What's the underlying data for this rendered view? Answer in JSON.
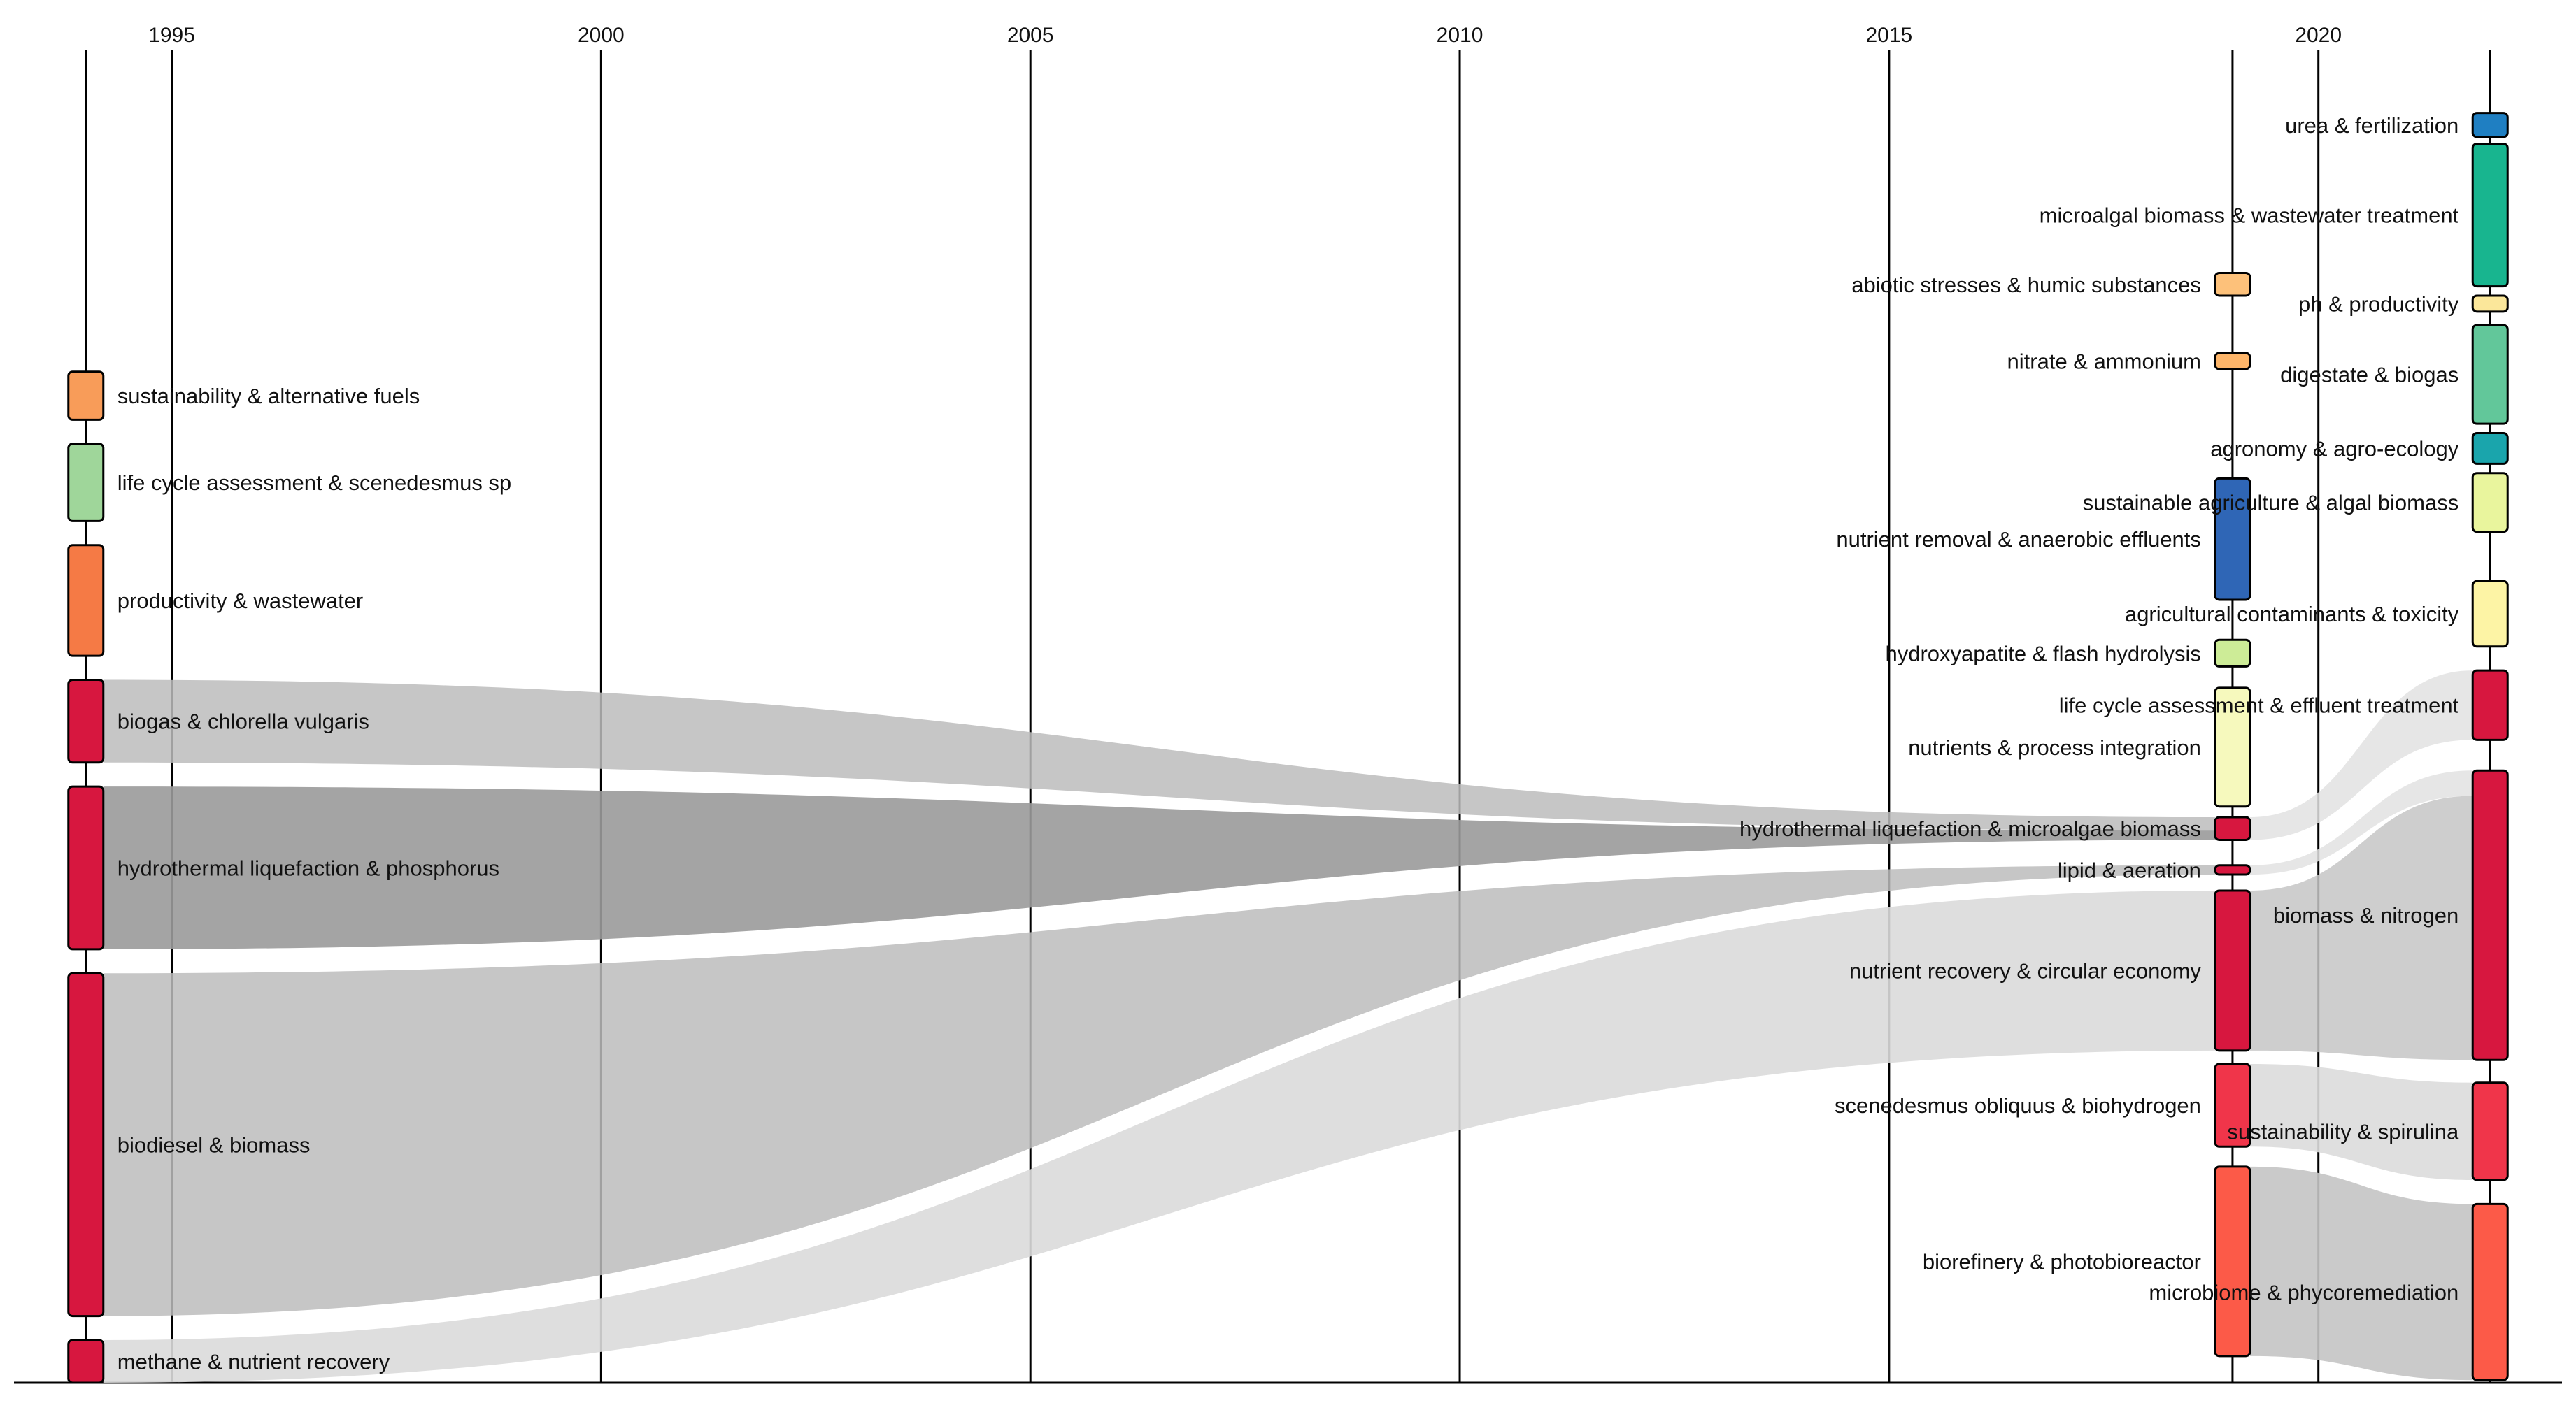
{
  "chart_data": {
    "type": "alluvial",
    "x_axis": {
      "range": [
        1993.0,
        2023.0
      ],
      "ticks": [
        "1995",
        "2000",
        "2005",
        "2010",
        "2015",
        "2020"
      ],
      "tick_values": [
        1995,
        2000,
        2005,
        2010,
        2015,
        2020
      ],
      "vertical_gridlines": true
    },
    "columns": [
      1994,
      2019,
      2022
    ],
    "nodes": [
      {
        "id": "sustainability_alt_fuels",
        "label": "sustainability & alternative fuels",
        "year": 1994,
        "label_side": "right",
        "y0": 0.242,
        "y1": 0.278,
        "color": "#f89c59"
      },
      {
        "id": "lca_scenedesmus",
        "label": "life cycle assessment & scenedesmus sp",
        "year": 1994,
        "label_side": "right",
        "y0": 0.296,
        "y1": 0.354,
        "color": "#9fd69a"
      },
      {
        "id": "productivity_wastewater",
        "label": "productivity & wastewater",
        "year": 1994,
        "label_side": "right",
        "y0": 0.372,
        "y1": 0.455,
        "color": "#f57a45"
      },
      {
        "id": "biogas_chlorella",
        "label": "biogas & chlorella vulgaris",
        "year": 1994,
        "label_side": "right",
        "y0": 0.473,
        "y1": 0.535,
        "color": "#d7173f"
      },
      {
        "id": "htl_phosphorus",
        "label": "hydrothermal liquefaction & phosphorus",
        "year": 1994,
        "label_side": "right",
        "y0": 0.553,
        "y1": 0.675,
        "color": "#d7173f"
      },
      {
        "id": "biodiesel_biomass",
        "label": "biodiesel & biomass",
        "year": 1994,
        "label_side": "right",
        "y0": 0.693,
        "y1": 0.95,
        "color": "#d7173f"
      },
      {
        "id": "methane_nutrient",
        "label": "methane & nutrient recovery",
        "year": 1994,
        "label_side": "right",
        "y0": 0.968,
        "y1": 1.0,
        "color": "#d7173f"
      },
      {
        "id": "abiotic_humic",
        "label": "abiotic stresses & humic substances",
        "year": 2019,
        "label_side": "left",
        "y0": 0.168,
        "y1": 0.185,
        "color": "#fdc17a"
      },
      {
        "id": "nitrate_ammonium",
        "label": "nitrate & ammonium",
        "year": 2019,
        "label_side": "left",
        "y0": 0.228,
        "y1": 0.24,
        "color": "#fdb569"
      },
      {
        "id": "nutrient_removal_anaerobic",
        "label": "nutrient removal & anaerobic effluents",
        "year": 2019,
        "label_side": "left",
        "y0": 0.322,
        "y1": 0.413,
        "color": "#2f66b6"
      },
      {
        "id": "hydroxyapatite_flash",
        "label": "hydroxyapatite & flash hydrolysis",
        "year": 2019,
        "label_side": "left",
        "y0": 0.443,
        "y1": 0.463,
        "color": "#cdec97"
      },
      {
        "id": "nutrients_process",
        "label": "nutrients & process integration",
        "year": 2019,
        "label_side": "left",
        "y0": 0.479,
        "y1": 0.568,
        "color": "#f6f9bd"
      },
      {
        "id": "htl_microalgae",
        "label": "hydrothermal liquefaction & microalgae biomass",
        "year": 2019,
        "label_side": "left",
        "y0": 0.576,
        "y1": 0.593,
        "color": "#d7173f"
      },
      {
        "id": "lipid_aeration",
        "label": "lipid & aeration",
        "year": 2019,
        "label_side": "left",
        "y0": 0.612,
        "y1": 0.619,
        "color": "#d7173f"
      },
      {
        "id": "nutrient_recovery_circular",
        "label": "nutrient recovery & circular economy",
        "year": 2019,
        "label_side": "left",
        "y0": 0.631,
        "y1": 0.751,
        "color": "#d7173f"
      },
      {
        "id": "scenedesmus_biohydrogen",
        "label": "scenedesmus obliquus & biohydrogen",
        "year": 2019,
        "label_side": "left",
        "y0": 0.761,
        "y1": 0.823,
        "color": "#f0354a"
      },
      {
        "id": "biorefinery_pbr",
        "label": "biorefinery & photobioreactor",
        "year": 2019,
        "label_side": "left",
        "y0": 0.838,
        "y1": 0.98,
        "color": "#fc5a48"
      },
      {
        "id": "urea_fertilization",
        "label": "urea & fertilization",
        "year": 2022,
        "label_side": "left",
        "y0": 0.048,
        "y1": 0.066,
        "color": "#1f7fc2"
      },
      {
        "id": "microalgal_wastewater",
        "label": "microalgal biomass & wastewater treatment",
        "year": 2022,
        "label_side": "left",
        "y0": 0.071,
        "y1": 0.178,
        "color": "#18b58f"
      },
      {
        "id": "ph_productivity",
        "label": "ph & productivity",
        "year": 2022,
        "label_side": "left",
        "y0": 0.185,
        "y1": 0.197,
        "color": "#fbe79a"
      },
      {
        "id": "digestate_biogas",
        "label": "digestate & biogas",
        "year": 2022,
        "label_side": "left",
        "y0": 0.207,
        "y1": 0.281,
        "color": "#62c79a"
      },
      {
        "id": "agronomy_agroecology",
        "label": "agronomy & agro-ecology",
        "year": 2022,
        "label_side": "left",
        "y0": 0.288,
        "y1": 0.311,
        "color": "#1aa5ac"
      },
      {
        "id": "sust_ag_algal",
        "label": "sustainable agriculture & algal biomass",
        "year": 2022,
        "label_side": "left",
        "y0": 0.318,
        "y1": 0.362,
        "color": "#e9f59d"
      },
      {
        "id": "ag_contaminants_toxicity",
        "label": "agricultural contaminants & toxicity",
        "year": 2022,
        "label_side": "left",
        "y0": 0.399,
        "y1": 0.448,
        "color": "#fdf4a5"
      },
      {
        "id": "lca_effluent",
        "label": "life cycle assessment & effluent treatment",
        "year": 2022,
        "label_side": "left",
        "y0": 0.466,
        "y1": 0.518,
        "color": "#d7173f"
      },
      {
        "id": "biomass_nitrogen",
        "label": "biomass & nitrogen",
        "year": 2022,
        "label_side": "left",
        "y0": 0.541,
        "y1": 0.758,
        "color": "#d7173f"
      },
      {
        "id": "sustainability_spirulina",
        "label": "sustainability & spirulina",
        "year": 2022,
        "label_side": "left",
        "y0": 0.775,
        "y1": 0.848,
        "color": "#f0354a"
      },
      {
        "id": "microbiome_phycoremediation",
        "label": "microbiome & phycoremediation",
        "year": 2022,
        "label_side": "left",
        "y0": 0.866,
        "y1": 0.998,
        "color": "#fc5a48"
      }
    ],
    "flows": [
      {
        "from": "biogas_chlorella",
        "to": "htl_microalgae",
        "source_span": [
          0.473,
          0.535
        ],
        "target_span": [
          0.576,
          0.586
        ],
        "color": "#bcbcbc",
        "opacity": 0.85
      },
      {
        "from": "htl_phosphorus",
        "to": "htl_microalgae",
        "source_span": [
          0.553,
          0.675
        ],
        "target_span": [
          0.586,
          0.593
        ],
        "color": "#9a9a9a",
        "opacity": 0.9
      },
      {
        "from": "biodiesel_biomass",
        "to": "lipid_aeration",
        "source_span": [
          0.693,
          0.95
        ],
        "target_span": [
          0.612,
          0.619
        ],
        "color": "#bcbcbc",
        "opacity": 0.85
      },
      {
        "from": "methane_nutrient",
        "to": "nutrient_recovery_circular",
        "source_span": [
          0.968,
          1.0
        ],
        "target_span": [
          0.631,
          0.751
        ],
        "color": "#dadada",
        "opacity": 0.9
      },
      {
        "from": "htl_microalgae",
        "to": "lca_effluent",
        "source_span": [
          0.576,
          0.593
        ],
        "target_span": [
          0.466,
          0.518
        ],
        "color": "#e2e2e2",
        "opacity": 0.85
      },
      {
        "from": "lipid_aeration",
        "to": "biomass_nitrogen",
        "source_span": [
          0.612,
          0.619
        ],
        "target_span": [
          0.541,
          0.56
        ],
        "color": "#e2e2e2",
        "opacity": 0.85
      },
      {
        "from": "nutrient_recovery_circular",
        "to": "biomass_nitrogen",
        "source_span": [
          0.631,
          0.751
        ],
        "target_span": [
          0.56,
          0.758
        ],
        "color": "#c6c6c6",
        "opacity": 0.85
      },
      {
        "from": "scenedesmus_biohydrogen",
        "to": "sustainability_spirulina",
        "source_span": [
          0.761,
          0.823
        ],
        "target_span": [
          0.775,
          0.848
        ],
        "color": "#dcdcdc",
        "opacity": 0.9
      },
      {
        "from": "biorefinery_pbr",
        "to": "microbiome_phycoremediation",
        "source_span": [
          0.838,
          0.98
        ],
        "target_span": [
          0.866,
          0.998
        ],
        "color": "#c4c4c4",
        "opacity": 0.9
      }
    ]
  }
}
